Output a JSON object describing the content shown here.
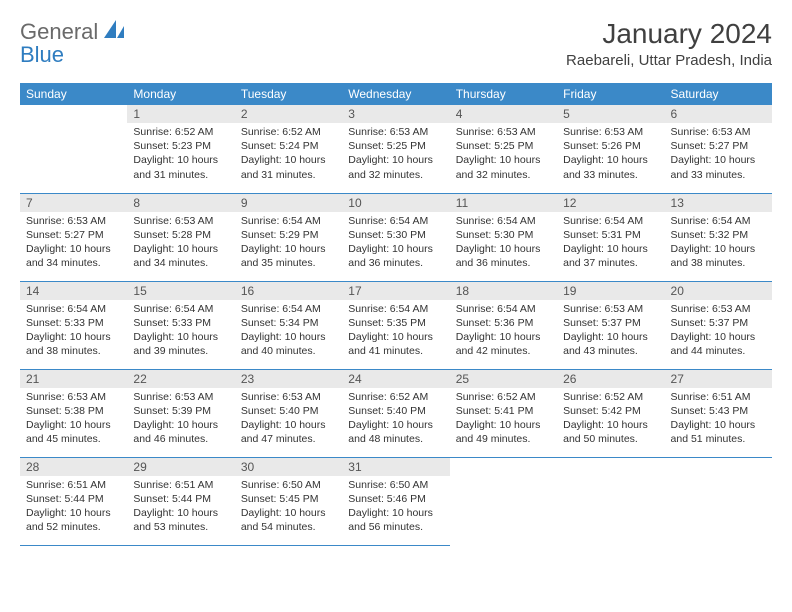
{
  "header": {
    "logo_text_1": "General",
    "logo_text_2": "Blue",
    "month": "January 2024",
    "location": "Raebareli, Uttar Pradesh, India"
  },
  "colors": {
    "header_bg": "#3b89c8",
    "daynum_bg": "#e9e9e9",
    "text": "#333333",
    "logo_gray": "#6a6a6a",
    "logo_blue": "#2f7dc0"
  },
  "weekdays": [
    "Sunday",
    "Monday",
    "Tuesday",
    "Wednesday",
    "Thursday",
    "Friday",
    "Saturday"
  ],
  "first_weekday": 1,
  "days": [
    {
      "n": 1,
      "sr": "6:52 AM",
      "ss": "5:23 PM",
      "dl": "10 hours and 31 minutes."
    },
    {
      "n": 2,
      "sr": "6:52 AM",
      "ss": "5:24 PM",
      "dl": "10 hours and 31 minutes."
    },
    {
      "n": 3,
      "sr": "6:53 AM",
      "ss": "5:25 PM",
      "dl": "10 hours and 32 minutes."
    },
    {
      "n": 4,
      "sr": "6:53 AM",
      "ss": "5:25 PM",
      "dl": "10 hours and 32 minutes."
    },
    {
      "n": 5,
      "sr": "6:53 AM",
      "ss": "5:26 PM",
      "dl": "10 hours and 33 minutes."
    },
    {
      "n": 6,
      "sr": "6:53 AM",
      "ss": "5:27 PM",
      "dl": "10 hours and 33 minutes."
    },
    {
      "n": 7,
      "sr": "6:53 AM",
      "ss": "5:27 PM",
      "dl": "10 hours and 34 minutes."
    },
    {
      "n": 8,
      "sr": "6:53 AM",
      "ss": "5:28 PM",
      "dl": "10 hours and 34 minutes."
    },
    {
      "n": 9,
      "sr": "6:54 AM",
      "ss": "5:29 PM",
      "dl": "10 hours and 35 minutes."
    },
    {
      "n": 10,
      "sr": "6:54 AM",
      "ss": "5:30 PM",
      "dl": "10 hours and 36 minutes."
    },
    {
      "n": 11,
      "sr": "6:54 AM",
      "ss": "5:30 PM",
      "dl": "10 hours and 36 minutes."
    },
    {
      "n": 12,
      "sr": "6:54 AM",
      "ss": "5:31 PM",
      "dl": "10 hours and 37 minutes."
    },
    {
      "n": 13,
      "sr": "6:54 AM",
      "ss": "5:32 PM",
      "dl": "10 hours and 38 minutes."
    },
    {
      "n": 14,
      "sr": "6:54 AM",
      "ss": "5:33 PM",
      "dl": "10 hours and 38 minutes."
    },
    {
      "n": 15,
      "sr": "6:54 AM",
      "ss": "5:33 PM",
      "dl": "10 hours and 39 minutes."
    },
    {
      "n": 16,
      "sr": "6:54 AM",
      "ss": "5:34 PM",
      "dl": "10 hours and 40 minutes."
    },
    {
      "n": 17,
      "sr": "6:54 AM",
      "ss": "5:35 PM",
      "dl": "10 hours and 41 minutes."
    },
    {
      "n": 18,
      "sr": "6:54 AM",
      "ss": "5:36 PM",
      "dl": "10 hours and 42 minutes."
    },
    {
      "n": 19,
      "sr": "6:53 AM",
      "ss": "5:37 PM",
      "dl": "10 hours and 43 minutes."
    },
    {
      "n": 20,
      "sr": "6:53 AM",
      "ss": "5:37 PM",
      "dl": "10 hours and 44 minutes."
    },
    {
      "n": 21,
      "sr": "6:53 AM",
      "ss": "5:38 PM",
      "dl": "10 hours and 45 minutes."
    },
    {
      "n": 22,
      "sr": "6:53 AM",
      "ss": "5:39 PM",
      "dl": "10 hours and 46 minutes."
    },
    {
      "n": 23,
      "sr": "6:53 AM",
      "ss": "5:40 PM",
      "dl": "10 hours and 47 minutes."
    },
    {
      "n": 24,
      "sr": "6:52 AM",
      "ss": "5:40 PM",
      "dl": "10 hours and 48 minutes."
    },
    {
      "n": 25,
      "sr": "6:52 AM",
      "ss": "5:41 PM",
      "dl": "10 hours and 49 minutes."
    },
    {
      "n": 26,
      "sr": "6:52 AM",
      "ss": "5:42 PM",
      "dl": "10 hours and 50 minutes."
    },
    {
      "n": 27,
      "sr": "6:51 AM",
      "ss": "5:43 PM",
      "dl": "10 hours and 51 minutes."
    },
    {
      "n": 28,
      "sr": "6:51 AM",
      "ss": "5:44 PM",
      "dl": "10 hours and 52 minutes."
    },
    {
      "n": 29,
      "sr": "6:51 AM",
      "ss": "5:44 PM",
      "dl": "10 hours and 53 minutes."
    },
    {
      "n": 30,
      "sr": "6:50 AM",
      "ss": "5:45 PM",
      "dl": "10 hours and 54 minutes."
    },
    {
      "n": 31,
      "sr": "6:50 AM",
      "ss": "5:46 PM",
      "dl": "10 hours and 56 minutes."
    }
  ],
  "labels": {
    "sunrise": "Sunrise:",
    "sunset": "Sunset:",
    "daylight": "Daylight:"
  }
}
